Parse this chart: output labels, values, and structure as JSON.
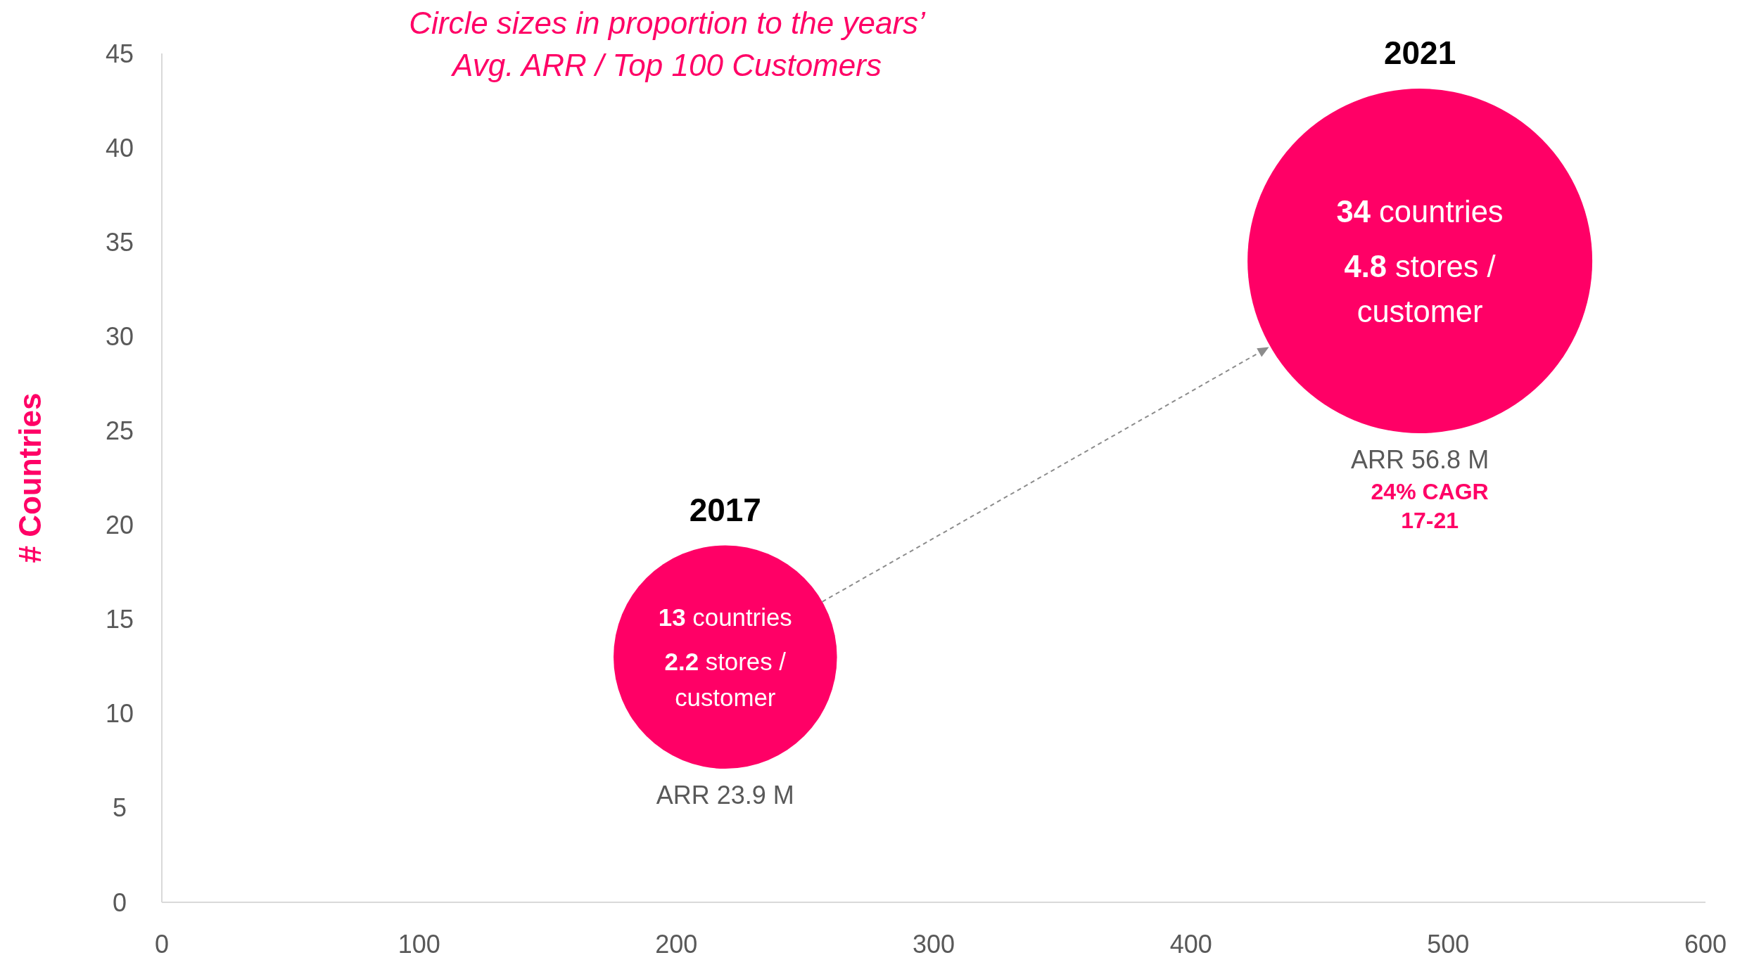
{
  "chart_data": {
    "type": "bubble",
    "title": "Circle sizes in proportion to the years’ Avg. ARR / Top 100 Customers",
    "ylabel": "# Countries",
    "x": [
      219,
      489
    ],
    "series": [
      {
        "color": "#ff0066",
        "values": [
          13,
          34
        ],
        "sizes": [
          0.42,
          1
        ]
      }
    ],
    "xlim": [
      0,
      600
    ],
    "xticks": [
      0,
      100,
      200,
      300,
      400,
      500,
      600
    ],
    "ylim": [
      0,
      45
    ],
    "yticks": [
      0,
      5,
      10,
      15,
      20,
      25,
      30,
      35,
      40,
      45
    ],
    "annotations": [
      "2017",
      "13 countries",
      "2.2 stores / customer",
      "ARR 23.9 M",
      "2021",
      "34 countries",
      "4.8 stores / customer",
      "ARR 56.8 M",
      "24% CAGR",
      "17-21"
    ]
  }
}
